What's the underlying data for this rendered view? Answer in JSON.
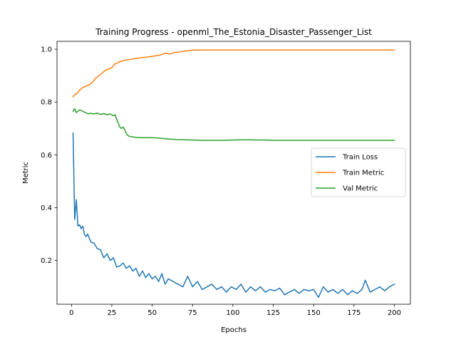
{
  "chart_data": {
    "type": "line",
    "title": "Training Progress - openml_The_Estonia_Disaster_Passenger_List",
    "xlabel": "Epochs",
    "ylabel": "Metric",
    "xlim": [
      -8.95,
      209.95
    ],
    "ylim": [
      0.034,
      1.03
    ],
    "xticks": [
      0,
      25,
      50,
      75,
      100,
      125,
      150,
      175,
      200
    ],
    "yticks": [
      0.2,
      0.4,
      0.6,
      0.8,
      1.0
    ],
    "ytick_labels": [
      "0.2",
      "0.4",
      "0.6",
      "0.8",
      "1.0"
    ],
    "grid": false,
    "legend_position": "center-right",
    "series": [
      {
        "name": "Train Loss",
        "color": "#1f77b4",
        "x": [
          1,
          2,
          3,
          4,
          5,
          6,
          7,
          8,
          9,
          10,
          12,
          14,
          16,
          18,
          20,
          22,
          24,
          26,
          28,
          30,
          32,
          34,
          36,
          38,
          40,
          42,
          44,
          46,
          48,
          50,
          52,
          54,
          56,
          58,
          60,
          63,
          66,
          69,
          72,
          75,
          78,
          81,
          84,
          87,
          90,
          93,
          96,
          99,
          102,
          105,
          108,
          111,
          114,
          117,
          120,
          123,
          126,
          129,
          132,
          135,
          138,
          141,
          144,
          147,
          150,
          153,
          156,
          159,
          162,
          165,
          168,
          171,
          174,
          177,
          180,
          182,
          185,
          188,
          191,
          194,
          197,
          200
        ],
        "y": [
          0.683,
          0.355,
          0.43,
          0.33,
          0.335,
          0.32,
          0.33,
          0.3,
          0.29,
          0.3,
          0.27,
          0.265,
          0.245,
          0.24,
          0.21,
          0.225,
          0.2,
          0.21,
          0.175,
          0.18,
          0.19,
          0.17,
          0.18,
          0.16,
          0.17,
          0.14,
          0.16,
          0.135,
          0.15,
          0.13,
          0.14,
          0.12,
          0.15,
          0.11,
          0.13,
          0.12,
          0.11,
          0.1,
          0.14,
          0.1,
          0.12,
          0.09,
          0.1,
          0.11,
          0.09,
          0.1,
          0.08,
          0.1,
          0.09,
          0.11,
          0.08,
          0.1,
          0.085,
          0.1,
          0.08,
          0.09,
          0.085,
          0.095,
          0.07,
          0.08,
          0.09,
          0.075,
          0.09,
          0.085,
          0.09,
          0.06,
          0.1,
          0.08,
          0.09,
          0.075,
          0.09,
          0.07,
          0.085,
          0.075,
          0.09,
          0.125,
          0.08,
          0.09,
          0.1,
          0.085,
          0.1,
          0.11
        ]
      },
      {
        "name": "Train Metric",
        "color": "#ff7f0e",
        "x": [
          1,
          2,
          3,
          5,
          7,
          9,
          11,
          13,
          15,
          17,
          19,
          21,
          23,
          25,
          27,
          29,
          31,
          33,
          35,
          37,
          40,
          43,
          46,
          49,
          52,
          55,
          58,
          61,
          64,
          67,
          70,
          73,
          76,
          80,
          90,
          100,
          110,
          120,
          130,
          140,
          150,
          160,
          170,
          180,
          190,
          200
        ],
        "y": [
          0.82,
          0.828,
          0.83,
          0.845,
          0.855,
          0.86,
          0.865,
          0.875,
          0.89,
          0.9,
          0.91,
          0.92,
          0.925,
          0.93,
          0.945,
          0.95,
          0.955,
          0.958,
          0.96,
          0.962,
          0.965,
          0.968,
          0.97,
          0.972,
          0.975,
          0.978,
          0.985,
          0.982,
          0.988,
          0.99,
          0.993,
          0.995,
          0.997,
          0.997,
          0.997,
          0.997,
          0.997,
          0.997,
          0.997,
          0.997,
          0.997,
          0.997,
          0.997,
          0.997,
          0.997,
          0.997
        ]
      },
      {
        "name": "Val Metric",
        "color": "#2ca02c",
        "x": [
          1,
          2,
          3,
          4,
          5,
          6,
          8,
          10,
          12,
          14,
          16,
          18,
          20,
          22,
          24,
          26,
          27,
          28,
          29,
          30,
          31,
          32,
          33,
          34,
          35,
          36,
          38,
          40,
          45,
          50,
          55,
          60,
          65,
          70,
          75,
          80,
          85,
          90,
          95,
          100,
          105,
          110,
          115,
          120,
          125,
          130,
          140,
          150,
          160,
          170,
          180,
          190,
          200
        ],
        "y": [
          0.765,
          0.775,
          0.76,
          0.765,
          0.77,
          0.768,
          0.762,
          0.756,
          0.757,
          0.755,
          0.758,
          0.753,
          0.756,
          0.752,
          0.755,
          0.748,
          0.752,
          0.735,
          0.72,
          0.705,
          0.7,
          0.705,
          0.695,
          0.68,
          0.673,
          0.67,
          0.668,
          0.666,
          0.665,
          0.665,
          0.663,
          0.66,
          0.658,
          0.657,
          0.656,
          0.655,
          0.655,
          0.655,
          0.655,
          0.656,
          0.657,
          0.657,
          0.656,
          0.656,
          0.655,
          0.655,
          0.655,
          0.655,
          0.655,
          0.655,
          0.655,
          0.655,
          0.655
        ]
      }
    ]
  }
}
